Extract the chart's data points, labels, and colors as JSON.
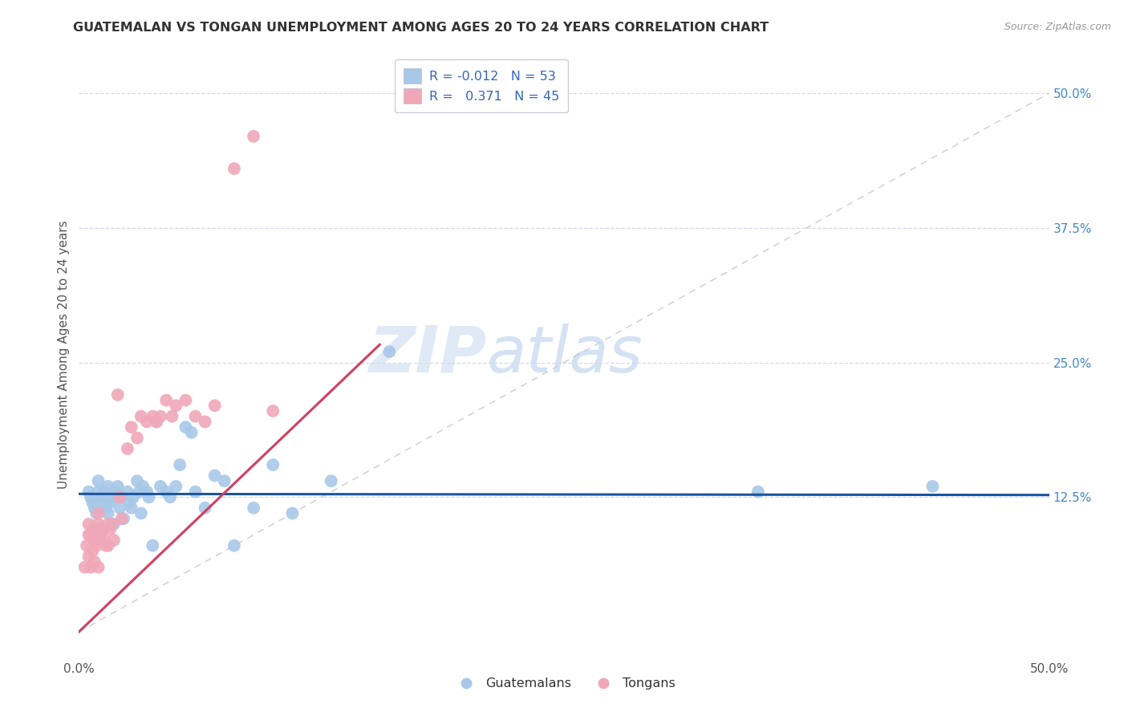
{
  "title": "GUATEMALAN VS TONGAN UNEMPLOYMENT AMONG AGES 20 TO 24 YEARS CORRELATION CHART",
  "source": "Source: ZipAtlas.com",
  "ylabel": "Unemployment Among Ages 20 to 24 years",
  "xlim": [
    0.0,
    0.5
  ],
  "ylim": [
    -0.025,
    0.54
  ],
  "right_yticks": [
    0.125,
    0.25,
    0.375,
    0.5
  ],
  "right_ytick_labels": [
    "12.5%",
    "25.0%",
    "37.5%",
    "50.0%"
  ],
  "legend_label_blue": "Guatemalans",
  "legend_label_pink": "Tongans",
  "watermark_zip": "ZIP",
  "watermark_atlas": "atlas",
  "blue_scatter_color": "#a8c8e8",
  "pink_scatter_color": "#f0a8b8",
  "blue_line_color": "#1a55a0",
  "pink_line_color": "#d04060",
  "diag_line_color": "#c8c8d8",
  "grid_color": "#d8d8e8",
  "background_color": "#ffffff",
  "blue_intercept": 0.128,
  "blue_slope": -0.002,
  "pink_intercept": 0.0,
  "pink_slope": 1.72,
  "guatemalan_x": [
    0.005,
    0.006,
    0.007,
    0.008,
    0.009,
    0.01,
    0.01,
    0.01,
    0.011,
    0.012,
    0.013,
    0.014,
    0.015,
    0.015,
    0.016,
    0.017,
    0.018,
    0.019,
    0.02,
    0.021,
    0.022,
    0.023,
    0.025,
    0.026,
    0.027,
    0.028,
    0.03,
    0.031,
    0.032,
    0.033,
    0.035,
    0.036,
    0.038,
    0.04,
    0.042,
    0.045,
    0.047,
    0.05,
    0.052,
    0.055,
    0.058,
    0.06,
    0.065,
    0.07,
    0.075,
    0.08,
    0.09,
    0.1,
    0.11,
    0.13,
    0.16,
    0.35,
    0.44
  ],
  "guatemalan_y": [
    0.13,
    0.125,
    0.12,
    0.115,
    0.11,
    0.14,
    0.13,
    0.095,
    0.125,
    0.12,
    0.13,
    0.115,
    0.135,
    0.11,
    0.12,
    0.125,
    0.1,
    0.13,
    0.135,
    0.115,
    0.125,
    0.105,
    0.13,
    0.12,
    0.115,
    0.125,
    0.14,
    0.13,
    0.11,
    0.135,
    0.13,
    0.125,
    0.08,
    0.195,
    0.135,
    0.13,
    0.125,
    0.135,
    0.155,
    0.19,
    0.185,
    0.13,
    0.115,
    0.145,
    0.14,
    0.08,
    0.115,
    0.155,
    0.11,
    0.14,
    0.26,
    0.13,
    0.135
  ],
  "tongan_x": [
    0.003,
    0.004,
    0.005,
    0.005,
    0.005,
    0.006,
    0.006,
    0.007,
    0.007,
    0.008,
    0.008,
    0.009,
    0.01,
    0.01,
    0.01,
    0.011,
    0.012,
    0.013,
    0.014,
    0.015,
    0.015,
    0.016,
    0.017,
    0.018,
    0.02,
    0.021,
    0.022,
    0.025,
    0.027,
    0.03,
    0.032,
    0.035,
    0.038,
    0.04,
    0.042,
    0.045,
    0.048,
    0.05,
    0.055,
    0.06,
    0.065,
    0.07,
    0.08,
    0.09,
    0.1
  ],
  "tongan_y": [
    0.06,
    0.08,
    0.07,
    0.09,
    0.1,
    0.06,
    0.09,
    0.075,
    0.095,
    0.065,
    0.085,
    0.08,
    0.1,
    0.11,
    0.06,
    0.09,
    0.095,
    0.085,
    0.08,
    0.1,
    0.08,
    0.095,
    0.1,
    0.085,
    0.22,
    0.125,
    0.105,
    0.17,
    0.19,
    0.18,
    0.2,
    0.195,
    0.2,
    0.195,
    0.2,
    0.215,
    0.2,
    0.21,
    0.215,
    0.2,
    0.195,
    0.21,
    0.43,
    0.46,
    0.205
  ]
}
